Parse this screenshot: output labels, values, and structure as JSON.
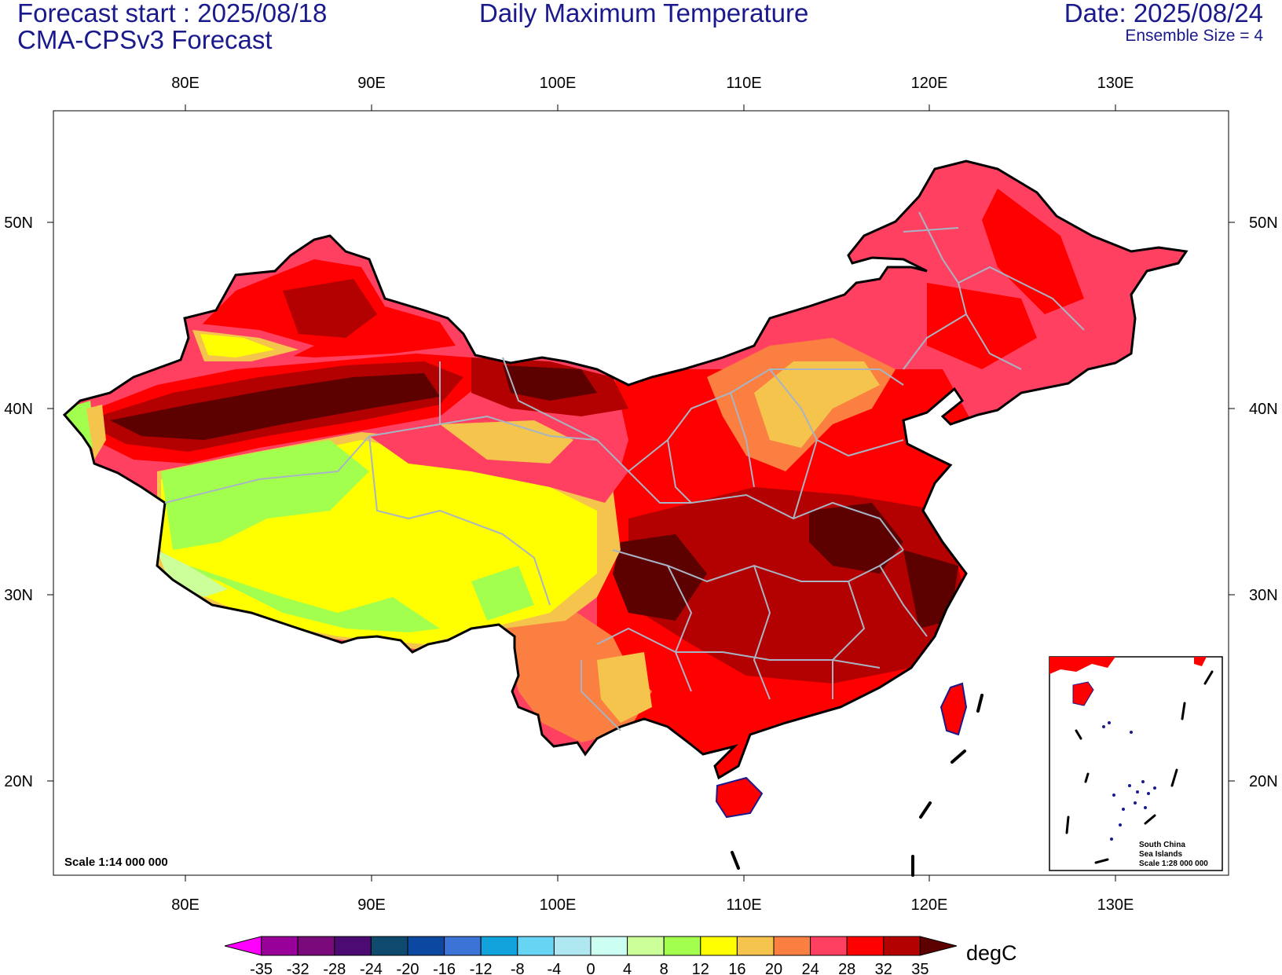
{
  "header": {
    "forecast_start": "Forecast start : 2025/08/18",
    "model": "CMA-CPSv3 Forecast",
    "title": "Daily Maximum Temperature",
    "date": "Date: 2025/08/24",
    "ensemble": "Ensemble Size = 4"
  },
  "map": {
    "lon_labels": [
      "80E",
      "90E",
      "100E",
      "110E",
      "120E",
      "130E"
    ],
    "lat_labels": [
      "50N",
      "40N",
      "30N",
      "20N"
    ],
    "scale_text": "Scale 1:14 000 000",
    "inset": {
      "line1": "South China",
      "line2": "Sea Islands",
      "line3": "Scale 1:28 000 000"
    }
  },
  "colorbar": {
    "unit": "degC",
    "ticks": [
      "-35",
      "-32",
      "-28",
      "-24",
      "-20",
      "-16",
      "-12",
      "-8",
      "-4",
      "0",
      "4",
      "8",
      "12",
      "16",
      "20",
      "24",
      "28",
      "32",
      "35"
    ],
    "colors": [
      "#ff00ff",
      "#990099",
      "#7a0a7a",
      "#4c0a73",
      "#0d4a6e",
      "#0c47a1",
      "#3c73d6",
      "#12a3dc",
      "#66d4f2",
      "#b0e8f2",
      "#ccfff2",
      "#ccff99",
      "#a3ff4d",
      "#ffff00",
      "#f5c44d",
      "#fa7f40",
      "#ff4060",
      "#ff0000",
      "#b30000",
      "#5c0000"
    ]
  }
}
